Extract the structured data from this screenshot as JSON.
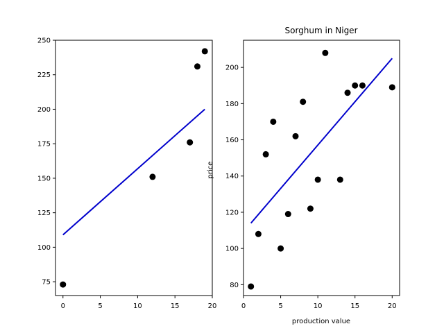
{
  "chart_data": [
    {
      "type": "scatter",
      "title": "",
      "xlabel": "",
      "ylabel": "",
      "xlim": [
        -1,
        20
      ],
      "ylim": [
        65,
        250
      ],
      "xticks": [
        0,
        5,
        10,
        15,
        20
      ],
      "yticks": [
        75,
        100,
        125,
        150,
        175,
        200,
        225,
        250
      ],
      "grid": false,
      "points": [
        {
          "x": 0,
          "y": 73
        },
        {
          "x": 12,
          "y": 151
        },
        {
          "x": 17,
          "y": 176
        },
        {
          "x": 18,
          "y": 231
        },
        {
          "x": 19,
          "y": 242
        }
      ],
      "fit_line": {
        "x": [
          0,
          19
        ],
        "y": [
          109,
          200
        ],
        "color": "#0000cc"
      },
      "marker_color": "#000000"
    },
    {
      "type": "scatter",
      "title": "Sorghum in Niger",
      "xlabel": "production value",
      "ylabel": "price",
      "xlim": [
        0,
        21
      ],
      "ylim": [
        74,
        215
      ],
      "xticks": [
        0,
        5,
        10,
        15,
        20
      ],
      "yticks": [
        80,
        100,
        120,
        140,
        160,
        180,
        200
      ],
      "grid": false,
      "points": [
        {
          "x": 1,
          "y": 79
        },
        {
          "x": 2,
          "y": 108
        },
        {
          "x": 3,
          "y": 152
        },
        {
          "x": 4,
          "y": 170
        },
        {
          "x": 5,
          "y": 100
        },
        {
          "x": 6,
          "y": 119
        },
        {
          "x": 7,
          "y": 162
        },
        {
          "x": 8,
          "y": 181
        },
        {
          "x": 9,
          "y": 122
        },
        {
          "x": 10,
          "y": 138
        },
        {
          "x": 11,
          "y": 208
        },
        {
          "x": 13,
          "y": 138
        },
        {
          "x": 14,
          "y": 186
        },
        {
          "x": 15,
          "y": 190
        },
        {
          "x": 16,
          "y": 190
        },
        {
          "x": 20,
          "y": 189
        }
      ],
      "fit_line": {
        "x": [
          1,
          20
        ],
        "y": [
          114,
          205
        ],
        "color": "#0000cc"
      },
      "marker_color": "#000000"
    }
  ]
}
